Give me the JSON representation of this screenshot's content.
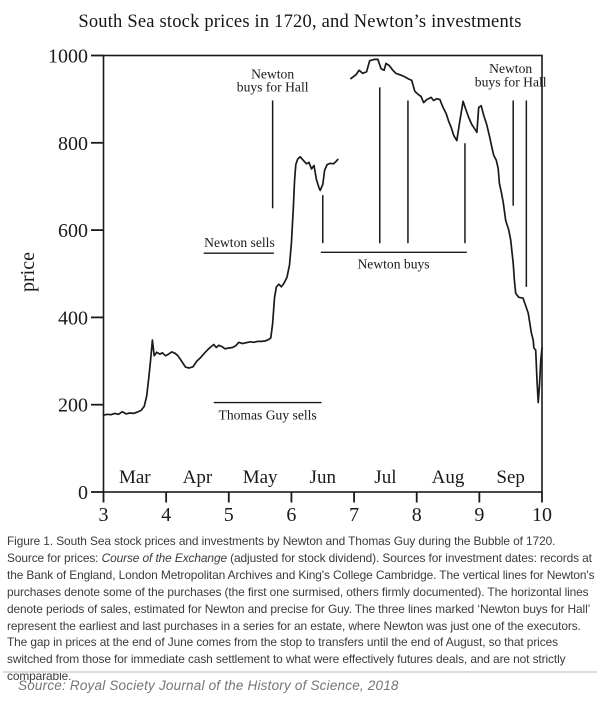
{
  "title": "South Sea stock prices in 1720, and Newton’s investments",
  "chart_data": {
    "type": "line",
    "title": "South Sea stock prices in 1720, and Newton’s investments",
    "xlabel": "",
    "ylabel": "price",
    "xlim": [
      3,
      10
    ],
    "ylim": [
      0,
      1000
    ],
    "x_ticks": [
      3,
      4,
      5,
      6,
      7,
      8,
      9,
      10
    ],
    "y_ticks": [
      0,
      200,
      400,
      600,
      800,
      1000
    ],
    "month_labels": [
      "Mar",
      "Apr",
      "May",
      "Jun",
      "Jul",
      "Aug",
      "Sep"
    ],
    "grid": false,
    "line_color": "#1a1a1a",
    "series": [
      {
        "name": "price-cash-settlement",
        "points": [
          [
            3.0,
            176
          ],
          [
            3.06,
            178
          ],
          [
            3.12,
            177
          ],
          [
            3.18,
            180
          ],
          [
            3.24,
            178
          ],
          [
            3.3,
            184
          ],
          [
            3.36,
            179
          ],
          [
            3.42,
            181
          ],
          [
            3.48,
            180
          ],
          [
            3.54,
            183
          ],
          [
            3.6,
            187
          ],
          [
            3.65,
            196
          ],
          [
            3.69,
            220
          ],
          [
            3.72,
            258
          ],
          [
            3.75,
            300
          ],
          [
            3.78,
            348
          ],
          [
            3.81,
            312
          ],
          [
            3.85,
            320
          ],
          [
            3.9,
            316
          ],
          [
            3.94,
            319
          ],
          [
            3.99,
            312
          ],
          [
            4.04,
            316
          ],
          [
            4.09,
            321
          ],
          [
            4.14,
            318
          ],
          [
            4.19,
            312
          ],
          [
            4.25,
            299
          ],
          [
            4.31,
            286
          ],
          [
            4.37,
            284
          ],
          [
            4.43,
            287
          ],
          [
            4.49,
            300
          ],
          [
            4.55,
            308
          ],
          [
            4.61,
            318
          ],
          [
            4.67,
            327
          ],
          [
            4.72,
            333
          ],
          [
            4.76,
            338
          ],
          [
            4.8,
            331
          ],
          [
            4.84,
            336
          ],
          [
            4.89,
            333
          ],
          [
            4.94,
            328
          ],
          [
            5.0,
            330
          ],
          [
            5.06,
            331
          ],
          [
            5.11,
            335
          ],
          [
            5.16,
            343
          ],
          [
            5.22,
            340
          ],
          [
            5.28,
            342
          ],
          [
            5.34,
            344
          ],
          [
            5.4,
            343
          ],
          [
            5.46,
            345
          ],
          [
            5.52,
            345
          ],
          [
            5.58,
            346
          ],
          [
            5.63,
            349
          ],
          [
            5.67,
            353
          ],
          [
            5.7,
            385
          ],
          [
            5.73,
            445
          ],
          [
            5.76,
            470
          ],
          [
            5.8,
            476
          ],
          [
            5.84,
            470
          ],
          [
            5.88,
            478
          ],
          [
            5.93,
            492
          ],
          [
            5.97,
            520
          ],
          [
            6.0,
            570
          ],
          [
            6.03,
            650
          ],
          [
            6.05,
            715
          ],
          [
            6.07,
            750
          ],
          [
            6.1,
            763
          ],
          [
            6.14,
            768
          ],
          [
            6.19,
            760
          ],
          [
            6.24,
            752
          ],
          [
            6.28,
            755
          ],
          [
            6.32,
            740
          ],
          [
            6.36,
            748
          ],
          [
            6.4,
            715
          ],
          [
            6.44,
            697
          ],
          [
            6.46,
            691
          ],
          [
            6.5,
            705
          ],
          [
            6.53,
            737
          ],
          [
            6.57,
            750
          ],
          [
            6.62,
            753
          ],
          [
            6.67,
            752
          ],
          [
            6.71,
            757
          ],
          [
            6.74,
            762
          ]
        ]
      },
      {
        "name": "price-futures",
        "points": [
          [
            6.95,
            947
          ],
          [
            7.03,
            956
          ],
          [
            7.08,
            966
          ],
          [
            7.14,
            959
          ],
          [
            7.2,
            963
          ],
          [
            7.25,
            988
          ],
          [
            7.32,
            991
          ],
          [
            7.38,
            991
          ],
          [
            7.43,
            970
          ],
          [
            7.48,
            966
          ],
          [
            7.51,
            982
          ],
          [
            7.56,
            977
          ],
          [
            7.62,
            966
          ],
          [
            7.67,
            959
          ],
          [
            7.73,
            956
          ],
          [
            7.8,
            952
          ],
          [
            7.86,
            947
          ],
          [
            7.92,
            943
          ],
          [
            7.97,
            918
          ],
          [
            8.02,
            911
          ],
          [
            8.07,
            906
          ],
          [
            8.11,
            892
          ],
          [
            8.16,
            899
          ],
          [
            8.23,
            904
          ],
          [
            8.27,
            897
          ],
          [
            8.32,
            901
          ],
          [
            8.37,
            899
          ],
          [
            8.42,
            881
          ],
          [
            8.47,
            867
          ],
          [
            8.51,
            849
          ],
          [
            8.55,
            835
          ],
          [
            8.59,
            817
          ],
          [
            8.64,
            805
          ],
          [
            8.69,
            851
          ],
          [
            8.74,
            895
          ],
          [
            8.79,
            874
          ],
          [
            8.83,
            858
          ],
          [
            8.88,
            842
          ],
          [
            8.93,
            831
          ],
          [
            8.96,
            824
          ],
          [
            8.99,
            881
          ],
          [
            9.03,
            885
          ],
          [
            9.07,
            863
          ],
          [
            9.12,
            840
          ],
          [
            9.17,
            810
          ],
          [
            9.2,
            789
          ],
          [
            9.23,
            771
          ],
          [
            9.27,
            760
          ],
          [
            9.3,
            741
          ],
          [
            9.32,
            707
          ],
          [
            9.35,
            687
          ],
          [
            9.38,
            664
          ],
          [
            9.42,
            622
          ],
          [
            9.47,
            600
          ],
          [
            9.5,
            577
          ],
          [
            9.54,
            524
          ],
          [
            9.56,
            485
          ],
          [
            9.58,
            455
          ],
          [
            9.63,
            446
          ],
          [
            9.7,
            444
          ],
          [
            9.71,
            439
          ],
          [
            9.78,
            410
          ],
          [
            9.83,
            364
          ],
          [
            9.86,
            348
          ],
          [
            9.87,
            330
          ],
          [
            9.9,
            325
          ],
          [
            9.92,
            256
          ],
          [
            9.94,
            205
          ],
          [
            9.96,
            245
          ],
          [
            9.98,
            300
          ],
          [
            10.0,
            330
          ]
        ]
      }
    ],
    "annotations": {
      "newton_sells": {
        "label": "Newton sells",
        "label_x": 5.17,
        "label_price": 561,
        "line": {
          "y": 547,
          "x1": 4.6,
          "x2": 5.72
        }
      },
      "thomas_guy_sells": {
        "label": "Thomas Guy sells",
        "label_x": 5.62,
        "label_price": 166,
        "line": {
          "y": 205,
          "x1": 4.76,
          "x2": 6.48
        }
      },
      "newton_buys": {
        "label": "Newton buys",
        "label_x": 7.63,
        "label_price": 512,
        "line": {
          "y": 549,
          "x1": 6.47,
          "x2": 8.8
        },
        "vlines": [
          {
            "x": 6.5,
            "y1": 680,
            "y2": 570
          },
          {
            "x": 7.41,
            "y1": 927,
            "y2": 570
          },
          {
            "x": 7.86,
            "y1": 897,
            "y2": 570
          },
          {
            "x": 8.77,
            "y1": 799,
            "y2": 570
          }
        ]
      },
      "hall_left": {
        "label_lines": [
          "Newton",
          "buys for Hall"
        ],
        "label_x": 5.7,
        "label_prices": [
          947,
          917
        ],
        "vlines": [
          {
            "x": 5.7,
            "y1": 897,
            "y2": 650
          }
        ]
      },
      "hall_right": {
        "label_lines": [
          "Newton",
          "buys for Hall"
        ],
        "label_x": 9.5,
        "label_prices": [
          960,
          929
        ],
        "vlines": [
          {
            "x": 9.54,
            "y1": 897,
            "y2": 656
          },
          {
            "x": 9.75,
            "y1": 897,
            "y2": 470
          }
        ]
      }
    }
  },
  "caption": {
    "part1": "Figure 1. South Sea stock prices and investments by Newton and Thomas Guy during the Bubble of 1720. Source for prices: ",
    "italic": "Course of the Exchange",
    "part2": " (adjusted for stock dividend). Sources for investment dates: records at the Bank of England, London Metropolitan Archives and King's College Cambridge. The vertical lines for Newton's purchases denote some of the purchases (the first one surmised, others firmly documented). The horizontal lines denote periods of sales, estimated for Newton and precise for Guy. The three lines marked ‘Newton buys for Hall’ represent the earliest and last purchases in a series for an estate, where Newton was just one of the executors. The gap in prices at the end of June comes from the stop to transfers until the end of August, so that prices switched from those for immediate cash settlement to what were effectively futures deals, and are not strictly comparable."
  },
  "source": "Source: Royal Society Journal of the History of Science, 2018"
}
